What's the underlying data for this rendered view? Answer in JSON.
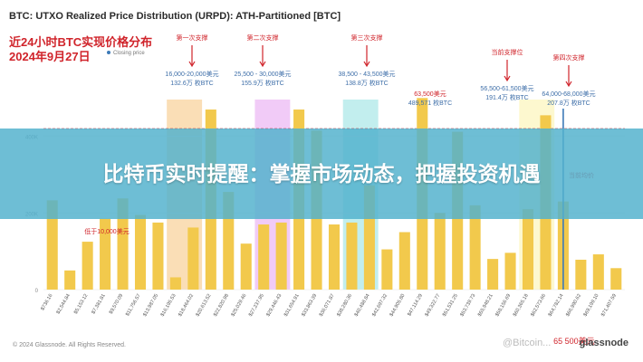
{
  "header": {
    "title": "BTC: UTXO Realized Price Distribution (URPD): ATH-Partitioned [BTC]",
    "cn_title": "近24小时BTC实现价格分布",
    "cn_date": "2024年9月27日",
    "legend_label": "Closing price"
  },
  "banner": {
    "text": "比特币实时提醒：掌握市场动态，把握投资机遇"
  },
  "footer": {
    "copyright": "© 2024 Glassnode. All Rights Reserved.",
    "brand": "glassnode",
    "watermark": "@Bitcoin..."
  },
  "colors": {
    "bar": "#f2c94c",
    "accent_red": "#d0242b",
    "closing_price": "#3d7ab8"
  },
  "chart_data": {
    "type": "bar",
    "title": "BTC: UTXO Realized Price Distribution (URPD): ATH-Partitioned [BTC]",
    "xlabel": "",
    "ylabel": "",
    "y_ticks": [
      "0",
      "200K",
      "400K"
    ],
    "ylim": [
      0,
      600000
    ],
    "grid": true,
    "categories": [
      "$736.16",
      "$2,544.84",
      "$5,153.12",
      "$7,381.81",
      "$9,570.09",
      "$11,756.57",
      "$13,987.05",
      "$16,195.53",
      "$18,464.02",
      "$20,613.52",
      "$22,820.98",
      "$25,029.46",
      "$27,237.95",
      "$29,446.43",
      "$31,654.91",
      "$33,863.39",
      "$36,071.87",
      "$38,280.36",
      "$40,488.84",
      "$42,697.32",
      "$44,905.80",
      "$47,114.29",
      "$49,322.77",
      "$51,531.25",
      "$53,739.73",
      "$55,948.21",
      "$58,156.69",
      "$60,365.18",
      "$62,573.66",
      "$64,782.14",
      "$66,990.62",
      "$69,199.10",
      "$71,407.59"
    ],
    "values": [
      233000,
      50000,
      125000,
      185000,
      238000,
      195000,
      175000,
      32000,
      162000,
      470000,
      255000,
      120000,
      170000,
      175000,
      470000,
      415000,
      170000,
      175000,
      272000,
      105000,
      150000,
      500000,
      200000,
      412000,
      220000,
      80000,
      96000,
      210000,
      455000,
      230000,
      78000,
      92000,
      56000
    ],
    "highlight_bands": [
      {
        "label": "第一次支撑",
        "from": "$16,195.53",
        "to": "$18,464.02",
        "color": "#f5c27a"
      },
      {
        "label": "第二次支撑",
        "from": "$27,237.95",
        "to": "$29,446.43",
        "color": "#e6a0f0"
      },
      {
        "label": "第三次支撑",
        "from": "$38,280.36",
        "to": "$40,488.84",
        "color": "#8fe0e0"
      },
      {
        "label": "当前支撑位",
        "from": "$60,365.18",
        "to": "$62,573.66",
        "color": "#fbf3a8"
      }
    ],
    "annotations": [
      {
        "label": "第一次支撑",
        "range": "16,000-20,000美元",
        "amount": "132.6万 枚BTC"
      },
      {
        "label": "第二次支撑",
        "range": "25,500 - 30,000美元",
        "amount": "155.9万 枚BTC"
      },
      {
        "label": "第三次支撑",
        "range": "38,500 - 43,500美元",
        "amount": "138.8万 枚BTC"
      },
      {
        "label": "",
        "range": "63,500美元",
        "amount": "489,571 枚BTC"
      },
      {
        "label": "当前支撑位",
        "range": "56,500-61,500美元",
        "amount": "191.4万 枚BTC"
      },
      {
        "label": "第四次支撑",
        "range": "64,000-68,000美元",
        "amount": "207.8万 枚BTC"
      },
      {
        "label": "",
        "range": "低于10,000美元",
        "amount": ""
      },
      {
        "label": "",
        "range": "当前均价",
        "amount": ""
      },
      {
        "label": "",
        "range": "65,500美元",
        "amount": ""
      }
    ],
    "closing_price": {
      "category": "$64,782.14",
      "label": "65 500美元"
    },
    "reference_line": {
      "value": 420000
    }
  }
}
